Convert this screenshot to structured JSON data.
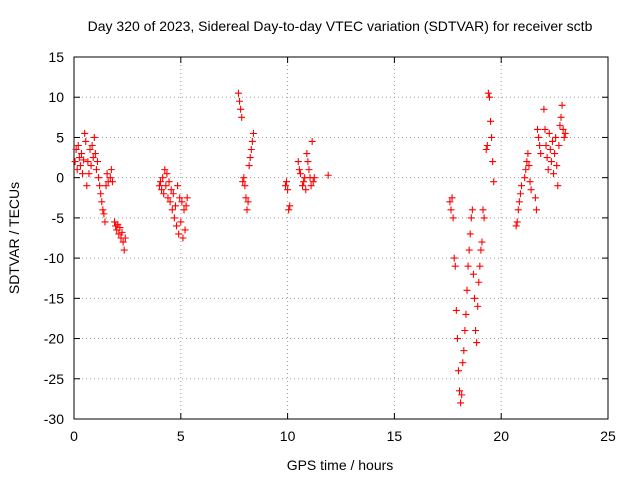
{
  "chart_data": {
    "type": "scatter",
    "title": "Day 320 of 2023, Sidereal Day-to-day VTEC variation (SDTVAR) for receiver sctb",
    "xlabel": "GPS time / hours",
    "ylabel": "SDTVAR / TECUs",
    "xlim": [
      0,
      25
    ],
    "ylim": [
      -30,
      15
    ],
    "x_ticks": [
      0,
      5,
      10,
      15,
      20,
      25
    ],
    "y_ticks": [
      -30,
      -25,
      -20,
      -15,
      -10,
      -5,
      0,
      5,
      10,
      15
    ],
    "x_tick_labels": [
      "0",
      "5",
      "10",
      "15",
      "20",
      "25"
    ],
    "y_tick_labels": [
      "-30",
      "-25",
      "-20",
      "-15",
      "-10",
      "-5",
      "0",
      "5",
      "10",
      "15"
    ],
    "grid": true,
    "marker": "+",
    "color": "#ff0000",
    "series": [
      {
        "name": "sctb",
        "points": [
          [
            0.05,
            2.0
          ],
          [
            0.1,
            3.5
          ],
          [
            0.15,
            1.0
          ],
          [
            0.2,
            4.0
          ],
          [
            0.25,
            2.5
          ],
          [
            0.3,
            1.5
          ],
          [
            0.35,
            3.0
          ],
          [
            0.4,
            0.5
          ],
          [
            0.45,
            2.2
          ],
          [
            0.5,
            5.5
          ],
          [
            0.55,
            4.5
          ],
          [
            0.6,
            -1.0
          ],
          [
            0.65,
            2.0
          ],
          [
            0.7,
            0.5
          ],
          [
            0.75,
            3.5
          ],
          [
            0.8,
            1.5
          ],
          [
            0.85,
            4.0
          ],
          [
            0.9,
            2.5
          ],
          [
            0.95,
            5.0
          ],
          [
            1.0,
            3.0
          ],
          [
            1.05,
            1.0
          ],
          [
            1.1,
            2.0
          ],
          [
            1.15,
            0.0
          ],
          [
            1.2,
            -1.0
          ],
          [
            1.25,
            -2.0
          ],
          [
            1.3,
            -3.0
          ],
          [
            1.35,
            -4.0
          ],
          [
            1.4,
            -4.5
          ],
          [
            1.45,
            -5.5
          ],
          [
            1.5,
            -1.0
          ],
          [
            1.55,
            0.5
          ],
          [
            1.6,
            -0.5
          ],
          [
            1.7,
            0.0
          ],
          [
            1.75,
            1.0
          ],
          [
            1.8,
            -0.5
          ],
          [
            1.9,
            -5.5
          ],
          [
            1.95,
            -6.0
          ],
          [
            2.0,
            -6.5
          ],
          [
            2.05,
            -5.8
          ],
          [
            2.1,
            -7.0
          ],
          [
            2.15,
            -6.2
          ],
          [
            2.2,
            -7.5
          ],
          [
            2.25,
            -6.8
          ],
          [
            2.3,
            -8.0
          ],
          [
            2.35,
            -9.0
          ],
          [
            2.4,
            -7.5
          ],
          [
            4.0,
            -1.0
          ],
          [
            4.05,
            -0.5
          ],
          [
            4.1,
            -1.5
          ],
          [
            4.15,
            0.0
          ],
          [
            4.2,
            -2.0
          ],
          [
            4.25,
            1.0
          ],
          [
            4.3,
            -1.0
          ],
          [
            4.35,
            0.5
          ],
          [
            4.4,
            -2.5
          ],
          [
            4.45,
            -0.5
          ],
          [
            4.5,
            -3.0
          ],
          [
            4.55,
            -1.5
          ],
          [
            4.6,
            -4.0
          ],
          [
            4.65,
            -2.0
          ],
          [
            4.7,
            -5.0
          ],
          [
            4.75,
            -3.5
          ],
          [
            4.8,
            -6.0
          ],
          [
            4.85,
            -1.0
          ],
          [
            4.9,
            -7.0
          ],
          [
            4.95,
            -2.5
          ],
          [
            5.0,
            -5.5
          ],
          [
            5.05,
            -3.0
          ],
          [
            5.1,
            -7.5
          ],
          [
            5.15,
            -4.0
          ],
          [
            5.2,
            -6.5
          ],
          [
            5.25,
            -3.5
          ],
          [
            5.3,
            -2.5
          ],
          [
            7.7,
            10.5
          ],
          [
            7.75,
            9.5
          ],
          [
            7.8,
            8.5
          ],
          [
            7.85,
            7.5
          ],
          [
            7.9,
            -0.5
          ],
          [
            7.95,
            0.0
          ],
          [
            8.0,
            -1.0
          ],
          [
            8.05,
            -2.5
          ],
          [
            8.1,
            -4.0
          ],
          [
            8.15,
            -3.0
          ],
          [
            8.2,
            1.5
          ],
          [
            8.25,
            2.5
          ],
          [
            8.3,
            3.5
          ],
          [
            8.35,
            4.5
          ],
          [
            8.4,
            5.5
          ],
          [
            9.9,
            -1.0
          ],
          [
            9.95,
            -0.5
          ],
          [
            10.0,
            -1.5
          ],
          [
            10.05,
            -4.0
          ],
          [
            10.1,
            -3.5
          ],
          [
            10.5,
            2.0
          ],
          [
            10.55,
            1.0
          ],
          [
            10.6,
            0.5
          ],
          [
            10.7,
            -1.0
          ],
          [
            10.75,
            -0.5
          ],
          [
            10.8,
            0.0
          ],
          [
            10.85,
            -1.5
          ],
          [
            10.9,
            3.0
          ],
          [
            10.95,
            2.0
          ],
          [
            11.0,
            1.0
          ],
          [
            11.05,
            0.0
          ],
          [
            11.1,
            -1.0
          ],
          [
            11.15,
            4.5
          ],
          [
            11.2,
            -0.5
          ],
          [
            11.25,
            0.0
          ],
          [
            11.9,
            0.3
          ],
          [
            17.6,
            -3.0
          ],
          [
            17.65,
            -4.0
          ],
          [
            17.7,
            -2.5
          ],
          [
            17.75,
            -5.0
          ],
          [
            17.8,
            -10.0
          ],
          [
            17.85,
            -11.0
          ],
          [
            17.9,
            -16.5
          ],
          [
            17.95,
            -20.0
          ],
          [
            18.0,
            -24.0
          ],
          [
            18.05,
            -26.5
          ],
          [
            18.1,
            -28.0
          ],
          [
            18.15,
            -27.0
          ],
          [
            18.2,
            -23.0
          ],
          [
            18.25,
            -21.5
          ],
          [
            18.3,
            -19.0
          ],
          [
            18.35,
            -17.0
          ],
          [
            18.4,
            -14.0
          ],
          [
            18.45,
            -11.0
          ],
          [
            18.5,
            -9.0
          ],
          [
            18.55,
            -7.0
          ],
          [
            18.6,
            -5.0
          ],
          [
            18.65,
            -4.0
          ],
          [
            18.7,
            -12.0
          ],
          [
            18.75,
            -15.0
          ],
          [
            18.8,
            -19.0
          ],
          [
            18.85,
            -20.5
          ],
          [
            18.9,
            -16.0
          ],
          [
            18.95,
            -13.0
          ],
          [
            19.0,
            -11.0
          ],
          [
            19.05,
            -9.0
          ],
          [
            19.1,
            -8.0
          ],
          [
            19.15,
            -4.0
          ],
          [
            19.2,
            -5.0
          ],
          [
            19.3,
            3.5
          ],
          [
            19.35,
            4.0
          ],
          [
            19.4,
            10.5
          ],
          [
            19.45,
            10.0
          ],
          [
            19.5,
            7.0
          ],
          [
            19.55,
            5.0
          ],
          [
            19.6,
            2.0
          ],
          [
            19.65,
            -0.5
          ],
          [
            20.7,
            -6.0
          ],
          [
            20.75,
            -5.5
          ],
          [
            20.8,
            -4.0
          ],
          [
            20.85,
            -3.0
          ],
          [
            20.9,
            -2.0
          ],
          [
            20.95,
            -1.0
          ],
          [
            21.1,
            0.0
          ],
          [
            21.15,
            1.0
          ],
          [
            21.2,
            2.0
          ],
          [
            21.25,
            3.0
          ],
          [
            21.3,
            1.5
          ],
          [
            21.35,
            -0.5
          ],
          [
            21.4,
            -1.5
          ],
          [
            21.6,
            -2.5
          ],
          [
            21.65,
            -4.0
          ],
          [
            21.7,
            6.0
          ],
          [
            21.75,
            5.0
          ],
          [
            21.8,
            4.0
          ],
          [
            21.85,
            3.0
          ],
          [
            22.0,
            8.5
          ],
          [
            22.05,
            6.0
          ],
          [
            22.1,
            4.0
          ],
          [
            22.15,
            2.5
          ],
          [
            22.2,
            1.0
          ],
          [
            22.25,
            5.5
          ],
          [
            22.3,
            3.5
          ],
          [
            22.35,
            2.0
          ],
          [
            22.4,
            4.5
          ],
          [
            22.45,
            0.5
          ],
          [
            22.5,
            3.0
          ],
          [
            22.55,
            5.0
          ],
          [
            22.6,
            1.5
          ],
          [
            22.65,
            -1.0
          ],
          [
            22.7,
            4.0
          ],
          [
            22.75,
            6.5
          ],
          [
            22.8,
            7.5
          ],
          [
            22.85,
            9.0
          ],
          [
            22.9,
            6.0
          ],
          [
            22.95,
            5.0
          ],
          [
            23.0,
            5.5
          ]
        ]
      }
    ]
  }
}
